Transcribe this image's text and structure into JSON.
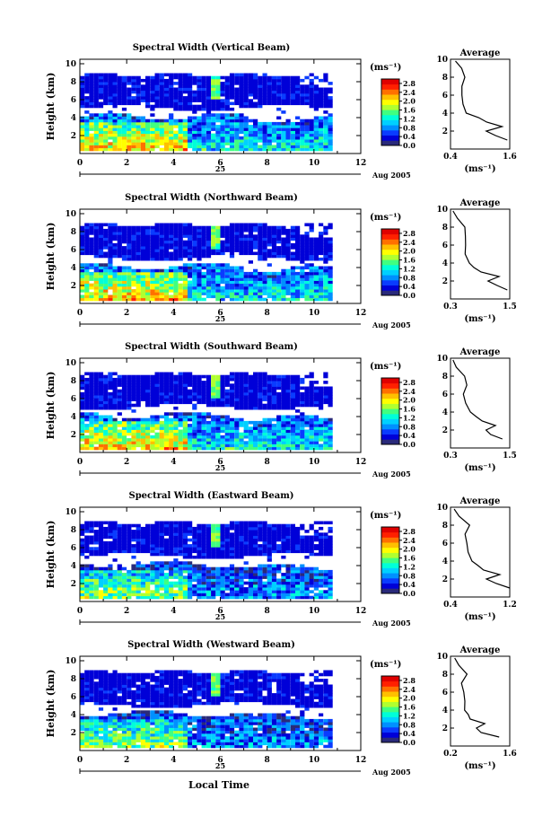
{
  "figure": {
    "xlabel": "Local Time",
    "date_label": "Aug 2005",
    "day_label": "25",
    "avg_title": "Average",
    "avg_xlabel": "(ms⁻¹)",
    "colorbar_unit": "(ms⁻¹)",
    "colorbar_ticks": [
      "0.0",
      "0.4",
      "0.8",
      "1.2",
      "1.6",
      "2.0",
      "2.4",
      "2.8"
    ],
    "colorbar_range": [
      0,
      3.0
    ],
    "colors": [
      "#2a2a7a",
      "#0000d8",
      "#0a3cff",
      "#0090ff",
      "#00d0ff",
      "#00ffd8",
      "#40ff80",
      "#b0ff30",
      "#ffff00",
      "#ffc000",
      "#ff7000",
      "#ff2000",
      "#e00000"
    ]
  },
  "chart_data": [
    {
      "type": "heatmap",
      "title": "Spectral Width (Vertical Beam)",
      "ylabel": "Height (km)",
      "xlim": [
        0,
        12
      ],
      "ylim": [
        0,
        10
      ],
      "xticks": [
        "0",
        "2",
        "4",
        "6",
        "8",
        "10",
        "12"
      ],
      "yticks": [
        "2",
        "4",
        "6",
        "8",
        "10"
      ],
      "avg_profile": {
        "xlim": [
          0.4,
          1.6
        ],
        "xticks": [
          "0.4",
          "1.6"
        ],
        "heights": [
          1.0,
          1.5,
          2.0,
          2.5,
          3.0,
          3.5,
          4.0,
          5.0,
          6.0,
          7.0,
          8.0,
          9.0,
          9.8
        ],
        "values": [
          1.55,
          1.3,
          1.15,
          1.45,
          1.1,
          0.95,
          0.7,
          0.62,
          0.6,
          0.62,
          0.7,
          0.6,
          0.5
        ]
      }
    },
    {
      "type": "heatmap",
      "title": "Spectral Width (Northward Beam)",
      "ylabel": "Height (km)",
      "xlim": [
        0,
        12
      ],
      "ylim": [
        0,
        10
      ],
      "xticks": [
        "0",
        "2",
        "4",
        "6",
        "8",
        "10",
        "12"
      ],
      "yticks": [
        "2",
        "4",
        "6",
        "8",
        "10"
      ],
      "avg_profile": {
        "xlim": [
          0.3,
          1.5
        ],
        "xticks": [
          "0.3",
          "1.5"
        ],
        "heights": [
          1.0,
          1.5,
          2.0,
          2.5,
          3.0,
          3.5,
          4.0,
          5.0,
          6.0,
          7.0,
          8.0,
          9.0,
          9.8
        ],
        "values": [
          1.45,
          1.25,
          1.05,
          1.3,
          0.95,
          0.8,
          0.65,
          0.6,
          0.58,
          0.6,
          0.62,
          0.45,
          0.35
        ]
      }
    },
    {
      "type": "heatmap",
      "title": "Spectral Width (Southward Beam)",
      "ylabel": "Height (km)",
      "xlim": [
        0,
        12
      ],
      "ylim": [
        0,
        10
      ],
      "xticks": [
        "0",
        "2",
        "4",
        "6",
        "8",
        "10",
        "12"
      ],
      "yticks": [
        "2",
        "4",
        "6",
        "8",
        "10"
      ],
      "avg_profile": {
        "xlim": [
          0.3,
          1.5
        ],
        "xticks": [
          "0.3",
          "1.5"
        ],
        "heights": [
          1.0,
          1.5,
          2.0,
          2.5,
          3.0,
          3.5,
          4.0,
          5.0,
          6.0,
          7.0,
          8.0,
          9.0,
          9.8
        ],
        "values": [
          1.35,
          1.15,
          1.0,
          1.2,
          0.95,
          0.8,
          0.7,
          0.6,
          0.58,
          0.6,
          0.62,
          0.45,
          0.35
        ]
      }
    },
    {
      "type": "heatmap",
      "title": "Spectral Width (Eastward Beam)",
      "ylabel": "Height (km)",
      "xlim": [
        0,
        12
      ],
      "ylim": [
        0,
        10
      ],
      "xticks": [
        "0",
        "2",
        "4",
        "6",
        "8",
        "10",
        "12"
      ],
      "yticks": [
        "2",
        "4",
        "6",
        "8",
        "10"
      ],
      "avg_profile": {
        "xlim": [
          0.4,
          1.2
        ],
        "xticks": [
          "0.4",
          "1.2"
        ],
        "heights": [
          1.0,
          1.5,
          2.0,
          2.5,
          3.0,
          3.5,
          4.0,
          5.0,
          6.0,
          7.0,
          8.0,
          9.0,
          9.8
        ],
        "values": [
          1.2,
          1.0,
          0.9,
          1.05,
          0.85,
          0.75,
          0.7,
          0.62,
          0.6,
          0.62,
          0.65,
          0.5,
          0.45
        ]
      }
    },
    {
      "type": "heatmap",
      "title": "Spectral Width (Westward Beam)",
      "ylabel": "Height (km)",
      "xlim": [
        0,
        12
      ],
      "ylim": [
        0,
        10
      ],
      "xticks": [
        "0",
        "2",
        "4",
        "6",
        "8",
        "10",
        "12"
      ],
      "yticks": [
        "2",
        "4",
        "6",
        "8",
        "10"
      ],
      "avg_profile": {
        "xlim": [
          0.2,
          1.6
        ],
        "xticks": [
          "0.2",
          "1.6"
        ],
        "heights": [
          1.0,
          1.5,
          2.0,
          2.5,
          3.0,
          3.5,
          4.0,
          5.0,
          6.0,
          7.0,
          8.0,
          9.0,
          9.8
        ],
        "values": [
          1.35,
          0.95,
          0.8,
          1.05,
          0.7,
          0.6,
          0.55,
          0.5,
          0.48,
          0.5,
          0.55,
          0.4,
          0.3
        ]
      }
    }
  ]
}
